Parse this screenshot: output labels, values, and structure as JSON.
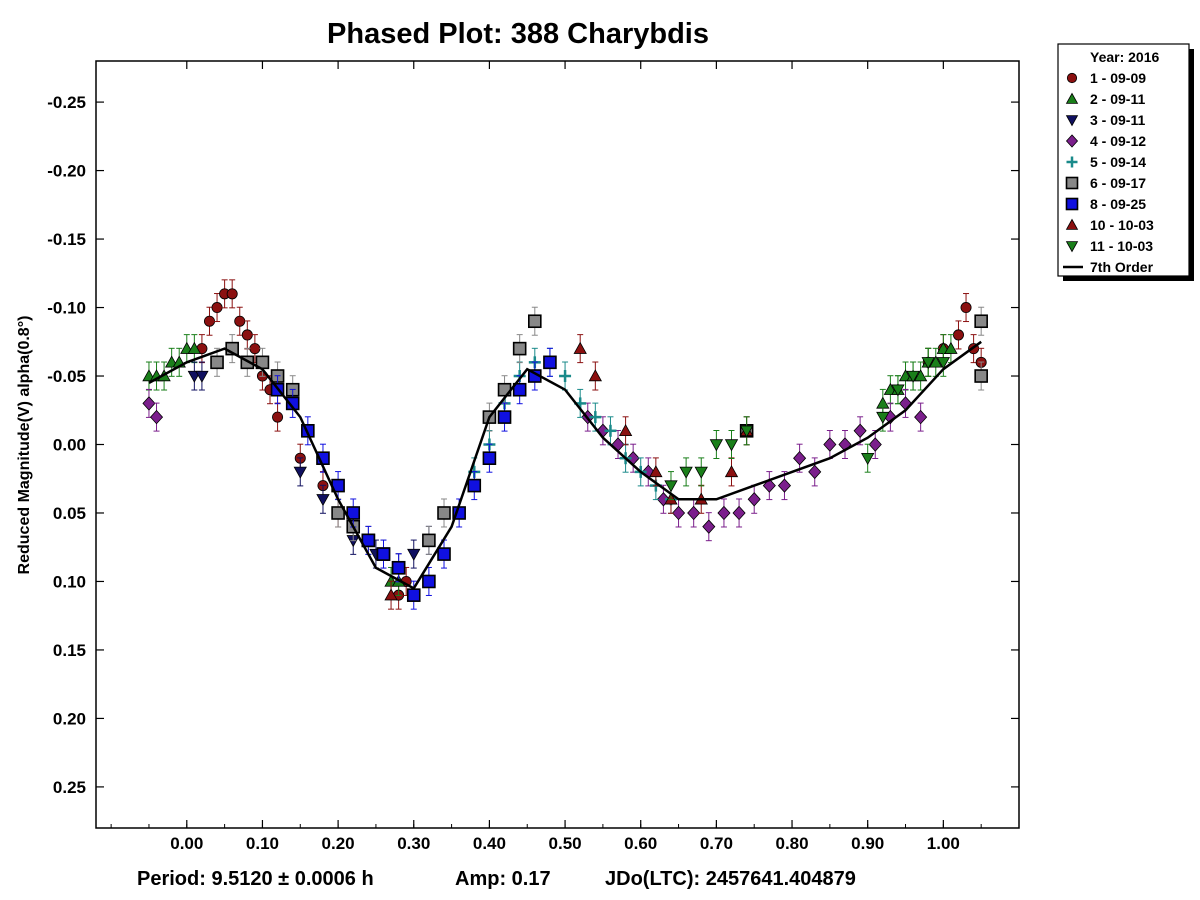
{
  "chart_data": {
    "type": "scatter",
    "title": "Phased Plot: 388 Charybdis",
    "ylabel": "Reduced Magnitude(V) alpha(0.8°)",
    "xlabel": "",
    "xlim": [
      -0.12,
      1.1
    ],
    "ylim": [
      0.28,
      -0.28
    ],
    "y_inverted": true,
    "x_ticks": [
      "0.00",
      "0.10",
      "0.20",
      "0.30",
      "0.40",
      "0.50",
      "0.60",
      "0.70",
      "0.80",
      "0.90",
      "1.00"
    ],
    "y_ticks": [
      "-0.25",
      "-0.20",
      "-0.15",
      "-0.10",
      "-0.05",
      "0.00",
      "0.05",
      "0.10",
      "0.15",
      "0.20",
      "0.25"
    ],
    "grid": false,
    "legend_position": "outside-top-right",
    "legend_title": "Year: 2016",
    "series": [
      {
        "name": "1 - 09-09",
        "marker": "circle",
        "color": "#8B1010",
        "points": [
          [
            0.02,
            -0.07
          ],
          [
            0.03,
            -0.09
          ],
          [
            0.04,
            -0.1
          ],
          [
            0.05,
            -0.11
          ],
          [
            0.06,
            -0.11
          ],
          [
            0.07,
            -0.09
          ],
          [
            0.08,
            -0.08
          ],
          [
            0.09,
            -0.07
          ],
          [
            0.1,
            -0.05
          ],
          [
            0.11,
            -0.04
          ],
          [
            0.12,
            -0.02
          ],
          [
            0.15,
            0.01
          ],
          [
            0.18,
            0.03
          ],
          [
            0.2,
            0.05
          ],
          [
            0.28,
            0.11
          ],
          [
            0.29,
            0.1
          ],
          [
            0.98,
            -0.06
          ],
          [
            1.0,
            -0.07
          ],
          [
            1.02,
            -0.08
          ],
          [
            1.03,
            -0.1
          ],
          [
            1.04,
            -0.07
          ],
          [
            1.05,
            -0.06
          ]
        ]
      },
      {
        "name": "2 - 09-11",
        "marker": "triangle-up",
        "color": "#1A7F1A",
        "points": [
          [
            -0.05,
            -0.05
          ],
          [
            -0.04,
            -0.05
          ],
          [
            -0.03,
            -0.05
          ],
          [
            -0.02,
            -0.06
          ],
          [
            -0.01,
            -0.06
          ],
          [
            0.0,
            -0.07
          ],
          [
            0.01,
            -0.07
          ],
          [
            0.27,
            0.1
          ],
          [
            0.28,
            0.1
          ],
          [
            0.92,
            -0.03
          ],
          [
            0.93,
            -0.04
          ],
          [
            0.94,
            -0.04
          ],
          [
            0.95,
            -0.05
          ],
          [
            0.96,
            -0.05
          ],
          [
            0.97,
            -0.05
          ],
          [
            0.98,
            -0.06
          ],
          [
            0.99,
            -0.06
          ],
          [
            1.0,
            -0.07
          ],
          [
            1.01,
            -0.07
          ]
        ]
      },
      {
        "name": "3 - 09-11",
        "marker": "triangle-down",
        "color": "#101060",
        "points": [
          [
            0.01,
            -0.05
          ],
          [
            0.02,
            -0.05
          ],
          [
            0.15,
            0.02
          ],
          [
            0.18,
            0.04
          ],
          [
            0.22,
            0.07
          ],
          [
            0.25,
            0.08
          ],
          [
            0.28,
            0.09
          ],
          [
            0.3,
            0.08
          ],
          [
            0.32,
            0.07
          ]
        ]
      },
      {
        "name": "4 - 09-12",
        "marker": "diamond",
        "color": "#7B1F8C",
        "points": [
          [
            -0.05,
            -0.03
          ],
          [
            -0.04,
            -0.02
          ],
          [
            0.53,
            -0.02
          ],
          [
            0.55,
            -0.01
          ],
          [
            0.57,
            0.0
          ],
          [
            0.59,
            0.01
          ],
          [
            0.61,
            0.02
          ],
          [
            0.63,
            0.04
          ],
          [
            0.65,
            0.05
          ],
          [
            0.67,
            0.05
          ],
          [
            0.69,
            0.06
          ],
          [
            0.71,
            0.05
          ],
          [
            0.73,
            0.05
          ],
          [
            0.75,
            0.04
          ],
          [
            0.77,
            0.03
          ],
          [
            0.79,
            0.03
          ],
          [
            0.81,
            0.01
          ],
          [
            0.83,
            0.02
          ],
          [
            0.85,
            0.0
          ],
          [
            0.87,
            0.0
          ],
          [
            0.89,
            -0.01
          ],
          [
            0.91,
            0.0
          ],
          [
            0.93,
            -0.02
          ],
          [
            0.95,
            -0.03
          ],
          [
            0.97,
            -0.02
          ]
        ]
      },
      {
        "name": "5 - 09-14",
        "marker": "plus",
        "color": "#1A8A8A",
        "points": [
          [
            0.38,
            0.02
          ],
          [
            0.4,
            0.0
          ],
          [
            0.42,
            -0.03
          ],
          [
            0.44,
            -0.05
          ],
          [
            0.46,
            -0.06
          ],
          [
            0.48,
            -0.06
          ],
          [
            0.5,
            -0.05
          ],
          [
            0.52,
            -0.03
          ],
          [
            0.54,
            -0.02
          ],
          [
            0.56,
            -0.01
          ],
          [
            0.58,
            0.01
          ],
          [
            0.6,
            0.02
          ],
          [
            0.62,
            0.03
          ],
          [
            0.64,
            0.04
          ]
        ]
      },
      {
        "name": "6 - 09-17",
        "marker": "square",
        "color": "#888888",
        "points": [
          [
            0.04,
            -0.06
          ],
          [
            0.06,
            -0.07
          ],
          [
            0.08,
            -0.06
          ],
          [
            0.1,
            -0.06
          ],
          [
            0.12,
            -0.05
          ],
          [
            0.14,
            -0.04
          ],
          [
            0.2,
            0.05
          ],
          [
            0.22,
            0.06
          ],
          [
            0.24,
            0.07
          ],
          [
            0.26,
            0.08
          ],
          [
            0.28,
            0.09
          ],
          [
            0.32,
            0.07
          ],
          [
            0.34,
            0.05
          ],
          [
            0.4,
            -0.02
          ],
          [
            0.42,
            -0.04
          ],
          [
            0.44,
            -0.07
          ],
          [
            0.46,
            -0.09
          ],
          [
            0.74,
            -0.01
          ],
          [
            1.05,
            -0.09
          ],
          [
            1.05,
            -0.05
          ]
        ]
      },
      {
        "name": "8 - 09-25",
        "marker": "square",
        "color": "#1010E0",
        "points": [
          [
            0.12,
            -0.04
          ],
          [
            0.14,
            -0.03
          ],
          [
            0.16,
            -0.01
          ],
          [
            0.18,
            0.01
          ],
          [
            0.2,
            0.03
          ],
          [
            0.22,
            0.05
          ],
          [
            0.24,
            0.07
          ],
          [
            0.26,
            0.08
          ],
          [
            0.28,
            0.09
          ],
          [
            0.3,
            0.11
          ],
          [
            0.32,
            0.1
          ],
          [
            0.34,
            0.08
          ],
          [
            0.36,
            0.05
          ],
          [
            0.38,
            0.03
          ],
          [
            0.4,
            0.01
          ],
          [
            0.42,
            -0.02
          ],
          [
            0.44,
            -0.04
          ],
          [
            0.46,
            -0.05
          ],
          [
            0.48,
            -0.06
          ]
        ]
      },
      {
        "name": "10 - 10-03",
        "marker": "triangle-up",
        "color": "#8B1010",
        "points": [
          [
            0.27,
            0.11
          ],
          [
            0.52,
            -0.07
          ],
          [
            0.54,
            -0.05
          ],
          [
            0.58,
            -0.01
          ],
          [
            0.62,
            0.02
          ],
          [
            0.64,
            0.04
          ],
          [
            0.68,
            0.04
          ],
          [
            0.72,
            0.02
          ],
          [
            0.74,
            -0.01
          ]
        ]
      },
      {
        "name": "11 - 10-03",
        "marker": "triangle-down",
        "color": "#1A7F1A",
        "points": [
          [
            0.64,
            0.03
          ],
          [
            0.66,
            0.02
          ],
          [
            0.68,
            0.02
          ],
          [
            0.7,
            0.0
          ],
          [
            0.72,
            0.0
          ],
          [
            0.74,
            -0.01
          ],
          [
            0.9,
            0.01
          ],
          [
            0.92,
            -0.02
          ],
          [
            0.94,
            -0.04
          ],
          [
            0.96,
            -0.05
          ],
          [
            0.98,
            -0.06
          ],
          [
            1.0,
            -0.06
          ]
        ]
      }
    ],
    "fit": {
      "name": "7th Order",
      "color": "#000000",
      "x": [
        -0.05,
        0.0,
        0.05,
        0.1,
        0.15,
        0.2,
        0.25,
        0.3,
        0.35,
        0.4,
        0.45,
        0.5,
        0.55,
        0.6,
        0.65,
        0.7,
        0.75,
        0.8,
        0.85,
        0.9,
        0.95,
        1.0,
        1.05
      ],
      "y": [
        -0.045,
        -0.06,
        -0.07,
        -0.055,
        -0.02,
        0.04,
        0.09,
        0.105,
        0.06,
        -0.02,
        -0.055,
        -0.04,
        -0.005,
        0.02,
        0.04,
        0.04,
        0.03,
        0.02,
        0.01,
        -0.005,
        -0.025,
        -0.055,
        -0.075
      ]
    }
  },
  "legend": {
    "title": "Year: 2016"
  },
  "footer": {
    "period": "Period: 9.5120 ± 0.0006 h",
    "amp": "Amp: 0.17",
    "jdo": "JDo(LTC): 2457641.404879"
  }
}
